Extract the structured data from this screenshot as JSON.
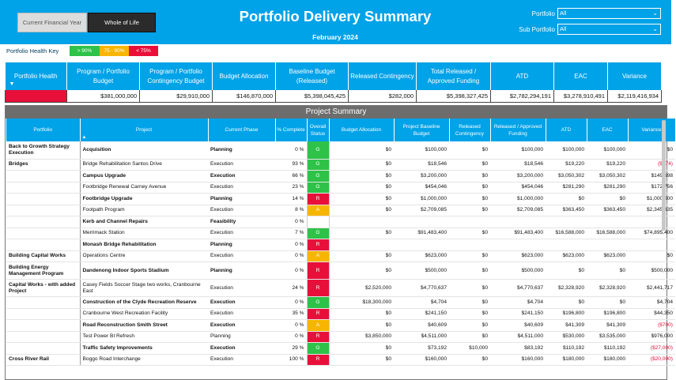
{
  "header": {
    "title": "Portfolio Delivery Summary",
    "period": "February 2024",
    "btn_current_fy": "Current Financial Year",
    "btn_whole_life": "Whole of Life",
    "portfolio_label": "Portfolio",
    "portfolio_value": "All",
    "sub_portfolio_label": "Sub Portfolio",
    "sub_portfolio_value": "All"
  },
  "health_key": {
    "label": "Portfolio Health Key",
    "green": "> 90%",
    "amber": "75 - 90%",
    "red": "< 75%"
  },
  "summary": {
    "headers": [
      "Portfolio Health",
      "Program / Portfolio Budget",
      "Program / Portfolio Contingency Budget",
      "Budget Allocation",
      "Baseline Budget (Released)",
      "Released Contingency",
      "Total Released / Approved Funding",
      "ATD",
      "EAC",
      "Variance"
    ],
    "values": [
      "",
      "$381,000,000",
      "$29,910,000",
      "$146,870,000",
      "$5,398,045,425",
      "$282,000",
      "$5,398,327,425",
      "$2,782,294,191",
      "$3,278,910,491",
      "$2,119,416,934"
    ]
  },
  "project_summary": {
    "title": "Project Summary",
    "headers": [
      "Portfolio",
      "Project",
      "Current Phase",
      "% Complete",
      "Overall Status",
      "Budget Allocation",
      "Project Baseline Budget",
      "Released Contingency",
      "Released / Approved Funding",
      "ATD",
      "EAC",
      "Variance"
    ],
    "rows": [
      {
        "portfolio": "Back to Growth Strategy Execution",
        "project": "Acquisition",
        "phase": "Planning",
        "pct": "0 %",
        "status": "G",
        "budget": "$0",
        "baseline": "$100,000",
        "contingency": "$0",
        "funding": "$100,000",
        "atd": "$100,000",
        "eac": "$100,000",
        "variance": "$0",
        "bold": true,
        "neg": false
      },
      {
        "portfolio": "Bridges",
        "project": "Bridge Rehabilitation Santos Drive",
        "phase": "Execution",
        "pct": "93 %",
        "status": "G",
        "budget": "$0",
        "baseline": "$18,546",
        "contingency": "$0",
        "funding": "$18,546",
        "atd": "$19,220",
        "eac": "$19,220",
        "variance": "($674)",
        "bold": false,
        "neg": true
      },
      {
        "portfolio": "",
        "project": "Campus Upgrade",
        "phase": "Execution",
        "pct": "66 %",
        "status": "G",
        "budget": "$0",
        "baseline": "$3,200,000",
        "contingency": "$0",
        "funding": "$3,200,000",
        "atd": "$3,050,302",
        "eac": "$3,050,302",
        "variance": "$149,698",
        "bold": true,
        "neg": false
      },
      {
        "portfolio": "",
        "project": "Footbridge Renewal Carney Avenue",
        "phase": "Execution",
        "pct": "23 %",
        "status": "G",
        "budget": "$0",
        "baseline": "$454,046",
        "contingency": "$0",
        "funding": "$454,046",
        "atd": "$281,290",
        "eac": "$281,290",
        "variance": "$172,756",
        "bold": false,
        "neg": false
      },
      {
        "portfolio": "",
        "project": "Footbridge Upgrade",
        "phase": "Planning",
        "pct": "14 %",
        "status": "R",
        "budget": "$0",
        "baseline": "$1,000,000",
        "contingency": "$0",
        "funding": "$1,000,000",
        "atd": "$0",
        "eac": "$0",
        "variance": "$1,000,000",
        "bold": true,
        "neg": false
      },
      {
        "portfolio": "",
        "project": "Footpath Program",
        "phase": "Execution",
        "pct": "8 %",
        "status": "A",
        "budget": "$0",
        "baseline": "$2,709,085",
        "contingency": "$0",
        "funding": "$2,709,085",
        "atd": "$363,450",
        "eac": "$363,450",
        "variance": "$2,345,635",
        "bold": false,
        "neg": false
      },
      {
        "portfolio": "",
        "project": "Kerb and Channel Repairs",
        "phase": "Feasibility",
        "pct": "0 %",
        "status": "",
        "budget": "",
        "baseline": "",
        "contingency": "",
        "funding": "",
        "atd": "",
        "eac": "",
        "variance": "",
        "bold": true,
        "neg": false
      },
      {
        "portfolio": "",
        "project": "Merrimack Station",
        "phase": "Execution",
        "pct": "7 %",
        "status": "G",
        "budget": "$0",
        "baseline": "$91,483,400",
        "contingency": "$0",
        "funding": "$91,483,400",
        "atd": "$16,588,000",
        "eac": "$16,588,000",
        "variance": "$74,895,400",
        "bold": false,
        "neg": false
      },
      {
        "portfolio": "",
        "project": "Monash Bridge Rehabilitation",
        "phase": "Planning",
        "pct": "0 %",
        "status": "R",
        "budget": "",
        "baseline": "",
        "contingency": "",
        "funding": "",
        "atd": "",
        "eac": "",
        "variance": "",
        "bold": true,
        "neg": false
      },
      {
        "portfolio": "Building Capital Works",
        "project": "Operations Centre",
        "phase": "Execution",
        "pct": "0 %",
        "status": "A",
        "budget": "$0",
        "baseline": "$623,000",
        "contingency": "$0",
        "funding": "$623,000",
        "atd": "$623,000",
        "eac": "$623,000",
        "variance": "$0",
        "bold": false,
        "neg": false
      },
      {
        "portfolio": "Building Energy Management Program",
        "project": "Dandenong Indoor Sports Stadium",
        "phase": "Planning",
        "pct": "0 %",
        "status": "R",
        "budget": "$0",
        "baseline": "$500,000",
        "contingency": "$0",
        "funding": "$500,000",
        "atd": "$0",
        "eac": "$0",
        "variance": "$500,000",
        "bold": true,
        "neg": false
      },
      {
        "portfolio": "Capital Works - with added Project",
        "project": "Casey Fields Soccer Stage two works, Cranbourne East",
        "phase": "Execution",
        "pct": "24 %",
        "status": "R",
        "budget": "$2,520,000",
        "baseline": "$4,770,637",
        "contingency": "$0",
        "funding": "$4,770,637",
        "atd": "$2,328,920",
        "eac": "$2,328,920",
        "variance": "$2,441,717",
        "bold": false,
        "neg": false
      },
      {
        "portfolio": "",
        "project": "Construction of the Clyde Recreation Reserve",
        "phase": "Execution",
        "pct": "0 %",
        "status": "G",
        "budget": "$18,300,000",
        "baseline": "$4,704",
        "contingency": "$0",
        "funding": "$4,704",
        "atd": "$0",
        "eac": "$0",
        "variance": "$4,704",
        "bold": true,
        "neg": false
      },
      {
        "portfolio": "",
        "project": "Cranbourne West Recreation Facility",
        "phase": "Execution",
        "pct": "35 %",
        "status": "R",
        "budget": "$0",
        "baseline": "$241,150",
        "contingency": "$0",
        "funding": "$241,150",
        "atd": "$196,800",
        "eac": "$196,800",
        "variance": "$44,350",
        "bold": false,
        "neg": false
      },
      {
        "portfolio": "",
        "project": "Road Reconstruction Smith Street",
        "phase": "Execution",
        "pct": "0 %",
        "status": "A",
        "budget": "$0",
        "baseline": "$40,609",
        "contingency": "$0",
        "funding": "$40,609",
        "atd": "$41,309",
        "eac": "$41,309",
        "variance": "($700)",
        "bold": true,
        "neg": true
      },
      {
        "portfolio": "",
        "project": "Test Power BI Refresh",
        "phase": "Planning",
        "pct": "0 %",
        "status": "R",
        "budget": "$3,850,000",
        "baseline": "$4,511,000",
        "contingency": "$0",
        "funding": "$4,511,000",
        "atd": "$530,000",
        "eac": "$3,535,000",
        "variance": "$976,000",
        "bold": false,
        "neg": false
      },
      {
        "portfolio": "",
        "project": "Traffic Safety Improvements",
        "phase": "Execution",
        "pct": "29 %",
        "status": "G",
        "budget": "$0",
        "baseline": "$73,192",
        "contingency": "$10,000",
        "funding": "$83,192",
        "atd": "$110,192",
        "eac": "$110,192",
        "variance": "($27,000)",
        "bold": true,
        "neg": true
      },
      {
        "portfolio": "Cross River Rail",
        "project": "Boggo Road Interchange",
        "phase": "Execution",
        "pct": "100 %",
        "status": "R",
        "budget": "$0",
        "baseline": "$160,000",
        "contingency": "$0",
        "funding": "$160,000",
        "atd": "$180,000",
        "eac": "$180,000",
        "variance": "($20,000)",
        "bold": false,
        "neg": true
      }
    ]
  },
  "colors": {
    "header_bg": "#00a2e8",
    "green": "#2ec248",
    "amber": "#f7b500",
    "red": "#e8103a"
  }
}
